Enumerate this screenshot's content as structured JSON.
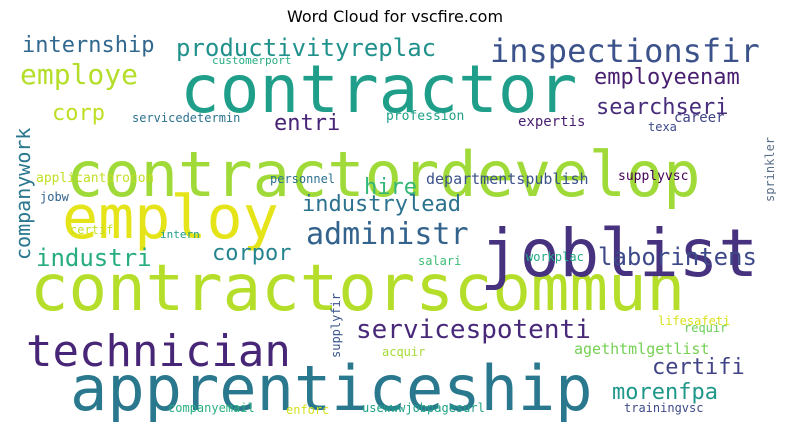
{
  "title": "Word Cloud for vscfire.com",
  "chart_data": {
    "type": "word_cloud",
    "words": [
      {
        "text": "contractorscommun",
        "weight": 1.0,
        "color": "#b5de2b"
      },
      {
        "text": "contractordevelop",
        "weight": 0.92,
        "color": "#a0da39"
      },
      {
        "text": "joblist",
        "weight": 0.88,
        "color": "#46327e"
      },
      {
        "text": "contractor",
        "weight": 0.86,
        "color": "#1f9e89"
      },
      {
        "text": "apprenticeship",
        "weight": 0.84,
        "color": "#2a788e"
      },
      {
        "text": "employ",
        "weight": 0.8,
        "color": "#e5e419"
      },
      {
        "text": "technician",
        "weight": 0.66,
        "color": "#482677"
      },
      {
        "text": "inspectionsfir",
        "weight": 0.46,
        "color": "#3b528b"
      },
      {
        "text": "administr",
        "weight": 0.44,
        "color": "#33638d"
      },
      {
        "text": "employe",
        "weight": 0.4,
        "color": "#b5de2b"
      },
      {
        "text": "servicespotenti",
        "weight": 0.4,
        "color": "#482878"
      },
      {
        "text": "productivityreplac",
        "weight": 0.38,
        "color": "#21918c"
      },
      {
        "text": "laborintens",
        "weight": 0.36,
        "color": "#3e4989"
      },
      {
        "text": "industri",
        "weight": 0.34,
        "color": "#27ad81"
      },
      {
        "text": "internship",
        "weight": 0.3,
        "color": "#31688e"
      },
      {
        "text": "industrylead",
        "weight": 0.3,
        "color": "#2c728e"
      },
      {
        "text": "employeenam",
        "weight": 0.3,
        "color": "#481f70"
      },
      {
        "text": "searchseri",
        "weight": 0.3,
        "color": "#472d7b"
      },
      {
        "text": "corpor",
        "weight": 0.3,
        "color": "#25858e"
      },
      {
        "text": "entri",
        "weight": 0.3,
        "color": "#482475"
      },
      {
        "text": "hire",
        "weight": 0.3,
        "color": "#35b779"
      },
      {
        "text": "certifi",
        "weight": 0.3,
        "color": "#414487"
      },
      {
        "text": "morenfpa",
        "weight": 0.3,
        "color": "#1f988b"
      },
      {
        "text": "corp",
        "weight": 0.3,
        "color": "#bddf26"
      },
      {
        "text": "companywork",
        "weight": 0.28,
        "color": "#2a788e"
      },
      {
        "text": "departmentspublish",
        "weight": 0.18,
        "color": "#3b528b"
      },
      {
        "text": "agethtmlgetlist",
        "weight": 0.18,
        "color": "#75d054"
      },
      {
        "text": "expertis",
        "weight": 0.16,
        "color": "#481f70"
      },
      {
        "text": "career",
        "weight": 0.16,
        "color": "#404688"
      },
      {
        "text": "profession",
        "weight": 0.14,
        "color": "#1fa188"
      },
      {
        "text": "applicantprocom",
        "weight": 0.14,
        "color": "#c2df23"
      },
      {
        "text": "supplyvsc",
        "weight": 0.14,
        "color": "#440154"
      },
      {
        "text": "servicedetermin",
        "weight": 0.14,
        "color": "#2c728e"
      },
      {
        "text": "texa",
        "weight": 0.14,
        "color": "#3e4a89"
      },
      {
        "text": "sprinkler",
        "weight": 0.14,
        "color": "#5c6f8a"
      },
      {
        "text": "customerport",
        "weight": 0.12,
        "color": "#26ad81"
      },
      {
        "text": "personnel",
        "weight": 0.12,
        "color": "#2d708e"
      },
      {
        "text": "jobw",
        "weight": 0.12,
        "color": "#33638d"
      },
      {
        "text": "certif",
        "weight": 0.12,
        "color": "#c2df23"
      },
      {
        "text": "intern",
        "weight": 0.12,
        "color": "#1f9e89"
      },
      {
        "text": "salari",
        "weight": 0.12,
        "color": "#3dbc74"
      },
      {
        "text": "workplac",
        "weight": 0.12,
        "color": "#22a884"
      },
      {
        "text": "lifesafeti",
        "weight": 0.12,
        "color": "#d8e219"
      },
      {
        "text": "requir",
        "weight": 0.12,
        "color": "#6ccd5a"
      },
      {
        "text": "supplyfir",
        "weight": 0.12,
        "color": "#3a548c"
      },
      {
        "text": "acquir",
        "weight": 0.12,
        "color": "#a5db36"
      },
      {
        "text": "companyemail",
        "weight": 0.12,
        "color": "#29af7f"
      },
      {
        "text": "enforc",
        "weight": 0.12,
        "color": "#d2e21b"
      },
      {
        "text": "usewwwjobpagesurl",
        "weight": 0.12,
        "color": "#1fa287"
      },
      {
        "text": "trainingvsc",
        "weight": 0.12,
        "color": "#3e4a89"
      }
    ]
  }
}
